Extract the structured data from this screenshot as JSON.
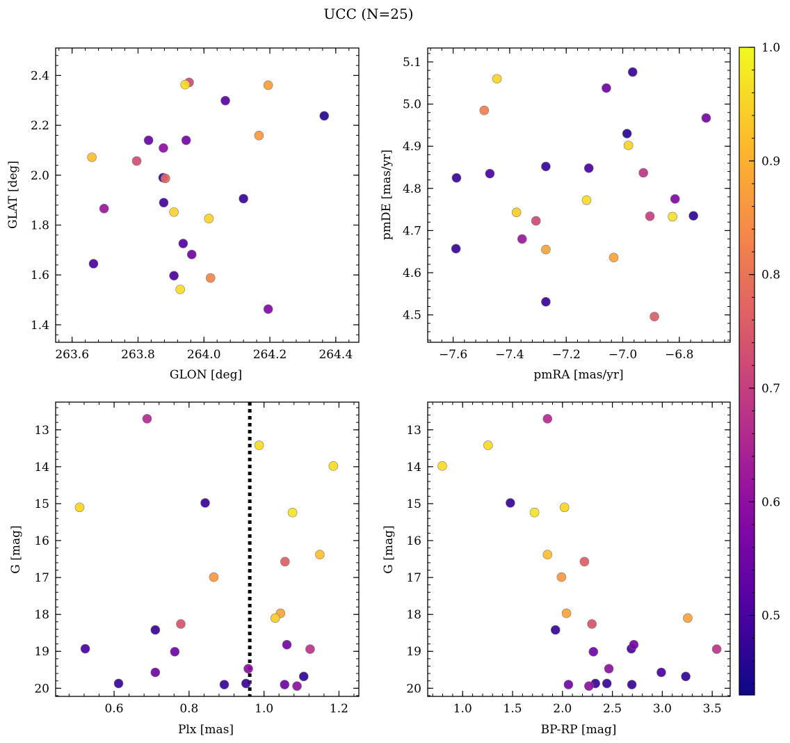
{
  "figure": {
    "title": "UCC (N=25)"
  },
  "colorbar": {
    "min": 0.43,
    "max": 1.0,
    "ticks": [
      0.5,
      0.6,
      0.7,
      0.8,
      0.9,
      1.0
    ],
    "tick_labels": [
      "0.5",
      "0.6",
      "0.7",
      "0.8",
      "0.9",
      "1.0"
    ],
    "colormap": "plasma"
  },
  "chart_data": [
    {
      "type": "scatter",
      "xlabel": "GLON [deg]",
      "ylabel": "GLAT [deg]",
      "xlim": [
        263.55,
        264.47
      ],
      "ylim": [
        1.33,
        2.51
      ],
      "xticks": [
        263.6,
        263.8,
        264.0,
        264.2,
        264.4
      ],
      "xtick_labels": [
        "263.6",
        "263.8",
        "264.0",
        "264.2",
        "264.4"
      ],
      "yticks": [
        1.4,
        1.6,
        1.8,
        2.0,
        2.2,
        2.4
      ],
      "ytick_labels": [
        "1.4",
        "1.6",
        "1.8",
        "2.0",
        "2.2",
        "2.4"
      ],
      "x": [
        263.955,
        263.943,
        264.195,
        264.065,
        264.365,
        263.832,
        263.946,
        264.167,
        263.66,
        263.877,
        263.796,
        263.876,
        263.883,
        263.697,
        263.878,
        264.12,
        263.909,
        264.015,
        263.937,
        263.963,
        263.665,
        263.909,
        264.02,
        263.928,
        264.195
      ],
      "y": [
        2.372,
        2.363,
        2.361,
        2.299,
        2.238,
        2.14,
        2.14,
        2.159,
        2.072,
        2.109,
        2.057,
        1.99,
        1.987,
        1.866,
        1.89,
        1.906,
        1.852,
        1.826,
        1.726,
        1.682,
        1.645,
        1.597,
        1.588,
        1.542,
        1.463
      ],
      "c": [
        0.72,
        0.96,
        0.87,
        0.52,
        0.46,
        0.54,
        0.56,
        0.86,
        0.92,
        0.6,
        0.73,
        0.47,
        0.78,
        0.62,
        0.49,
        0.48,
        0.95,
        0.95,
        0.51,
        0.55,
        0.5,
        0.5,
        0.83,
        0.96,
        0.58
      ]
    },
    {
      "type": "scatter",
      "xlabel": "pmRA [mas/yr]",
      "ylabel": "pmDE [mas/yr]",
      "xlim": [
        -7.69,
        -6.62
      ],
      "ylim": [
        4.435,
        5.133
      ],
      "xticks": [
        -7.6,
        -7.4,
        -7.2,
        -7.0,
        -6.8
      ],
      "xtick_labels": [
        "−7.6",
        "−7.4",
        "−7.2",
        "−7.0",
        "−6.8"
      ],
      "yticks": [
        4.5,
        4.6,
        4.7,
        4.8,
        4.9,
        5.0,
        5.1
      ],
      "ytick_labels": [
        "4.5",
        "4.6",
        "4.7",
        "4.8",
        "4.9",
        "5.0",
        "5.1"
      ],
      "x": [
        -7.445,
        -7.49,
        -6.965,
        -7.058,
        -6.705,
        -6.985,
        -6.98,
        -7.588,
        -7.47,
        -7.272,
        -7.12,
        -6.927,
        -6.815,
        -7.376,
        -7.128,
        -6.904,
        -6.824,
        -6.75,
        -7.307,
        -7.356,
        -7.272,
        -7.59,
        -7.032,
        -7.272,
        -6.888
      ],
      "y": [
        5.06,
        4.985,
        5.076,
        5.038,
        4.967,
        4.93,
        4.902,
        4.825,
        4.835,
        4.852,
        4.848,
        4.837,
        4.775,
        4.743,
        4.772,
        4.734,
        4.733,
        4.735,
        4.723,
        4.68,
        4.655,
        4.657,
        4.636,
        4.531,
        4.496
      ],
      "c": [
        0.95,
        0.82,
        0.48,
        0.55,
        0.56,
        0.46,
        0.95,
        0.48,
        0.5,
        0.48,
        0.5,
        0.68,
        0.58,
        0.94,
        0.96,
        0.7,
        0.97,
        0.47,
        0.72,
        0.62,
        0.88,
        0.48,
        0.88,
        0.48,
        0.76
      ]
    },
    {
      "type": "scatter",
      "xlabel": "Plx [mas]",
      "ylabel": "G [mag]",
      "xlim": [
        0.444,
        1.253
      ],
      "ylim": [
        20.22,
        12.25
      ],
      "y_inverted": true,
      "xticks": [
        0.6,
        0.8,
        1.0,
        1.2
      ],
      "xtick_labels": [
        "0.6",
        "0.8",
        "1.0",
        "1.2"
      ],
      "yticks": [
        13,
        14,
        15,
        16,
        17,
        18,
        19,
        20
      ],
      "ytick_labels": [
        "13",
        "14",
        "15",
        "16",
        "17",
        "18",
        "19",
        "20"
      ],
      "vline": {
        "x": 0.962,
        "style": "dotted"
      },
      "x": [
        0.688,
        0.987,
        1.185,
        0.508,
        0.843,
        1.076,
        1.149,
        1.056,
        0.866,
        1.044,
        1.03,
        0.778,
        0.71,
        0.523,
        1.061,
        1.123,
        0.762,
        0.71,
        0.958,
        1.106,
        0.612,
        0.894,
        0.952,
        1.055,
        1.088
      ],
      "y": [
        12.7,
        13.42,
        13.98,
        15.1,
        14.98,
        15.24,
        16.38,
        16.57,
        16.99,
        17.97,
        18.1,
        18.26,
        18.42,
        18.93,
        18.82,
        18.94,
        19.01,
        19.57,
        19.47,
        19.68,
        19.87,
        19.9,
        19.87,
        19.9,
        19.94
      ],
      "c": [
        0.66,
        0.96,
        0.96,
        0.95,
        0.48,
        0.97,
        0.92,
        0.76,
        0.86,
        0.88,
        0.94,
        0.74,
        0.48,
        0.5,
        0.56,
        0.68,
        0.55,
        0.55,
        0.6,
        0.47,
        0.48,
        0.48,
        0.48,
        0.55,
        0.6
      ]
    },
    {
      "type": "scatter",
      "xlabel": "BP-RP [mag]",
      "ylabel": "G [mag]",
      "xlim": [
        0.65,
        3.68
      ],
      "ylim": [
        20.22,
        12.25
      ],
      "y_inverted": true,
      "xticks": [
        1.0,
        1.5,
        2.0,
        2.5,
        3.0,
        3.5
      ],
      "xtick_labels": [
        "1.0",
        "1.5",
        "2.0",
        "2.5",
        "3.0",
        "3.5"
      ],
      "yticks": [
        13,
        14,
        15,
        16,
        17,
        18,
        19,
        20
      ],
      "ytick_labels": [
        "13",
        "14",
        "15",
        "16",
        "17",
        "18",
        "19",
        "20"
      ],
      "x": [
        1.85,
        1.255,
        0.796,
        1.478,
        1.72,
        2.02,
        1.85,
        2.22,
        1.99,
        2.04,
        3.255,
        2.295,
        1.93,
        2.69,
        2.715,
        3.545,
        2.31,
        2.99,
        2.465,
        3.235,
        2.06,
        2.33,
        2.445,
        2.695,
        2.265
      ],
      "y": [
        12.7,
        13.42,
        13.98,
        14.98,
        15.24,
        15.1,
        16.38,
        16.57,
        16.99,
        17.97,
        18.1,
        18.26,
        18.42,
        18.93,
        18.82,
        18.94,
        19.01,
        19.57,
        19.47,
        19.68,
        19.9,
        19.87,
        19.87,
        19.9,
        19.94
      ],
      "c": [
        0.66,
        0.96,
        0.96,
        0.48,
        0.97,
        0.95,
        0.92,
        0.76,
        0.86,
        0.88,
        0.88,
        0.74,
        0.48,
        0.5,
        0.56,
        0.68,
        0.55,
        0.5,
        0.6,
        0.47,
        0.55,
        0.48,
        0.48,
        0.48,
        0.6
      ]
    }
  ]
}
